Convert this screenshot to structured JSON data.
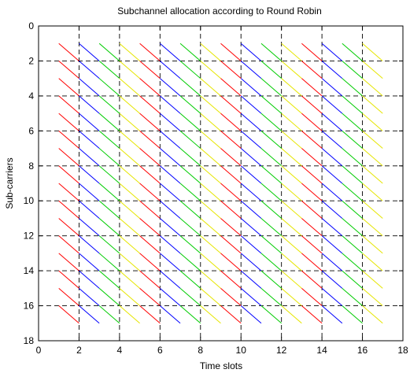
{
  "chart_data": {
    "type": "line",
    "title": "Subchannel allocation according to Round Robin",
    "xlabel": "Time slots",
    "ylabel": "Sub-carriers",
    "xlim": [
      0,
      18
    ],
    "ylim": [
      0,
      18
    ],
    "y_reversed": true,
    "x_ticks": [
      0,
      2,
      4,
      6,
      8,
      10,
      12,
      14,
      16,
      18
    ],
    "y_ticks": [
      0,
      2,
      4,
      6,
      8,
      10,
      12,
      14,
      16,
      18
    ],
    "grid": true,
    "legend": "none",
    "colors": [
      "#ff0000",
      "#0000ff",
      "#00cc00",
      "#e6e600"
    ],
    "segments": {
      "x_starts": [
        1,
        2,
        3,
        4,
        5,
        6,
        7,
        8,
        9,
        10,
        11,
        12,
        13,
        14,
        15,
        16
      ],
      "y_starts": [
        1,
        2,
        3,
        4,
        5,
        6,
        7,
        8,
        9,
        10,
        11,
        12,
        13,
        14,
        15,
        16
      ],
      "dx": 1,
      "dy": 1,
      "color_cycle": "(x_start - 1) mod 4"
    }
  }
}
